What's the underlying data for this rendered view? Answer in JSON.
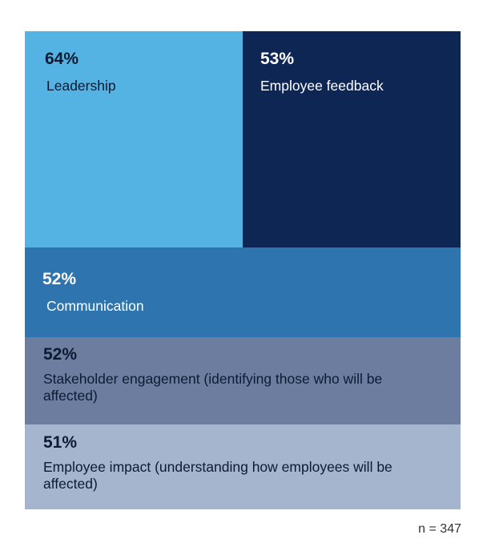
{
  "chart_data": {
    "type": "treemap",
    "categories": [
      "Leadership",
      "Employee feedback",
      "Communication",
      "Stakeholder engagement (identifying those who will be affected)",
      "Employee impact (understanding how employees will be affected)"
    ],
    "values": [
      64,
      53,
      52,
      52,
      51
    ],
    "value_labels": [
      "64%",
      "53%",
      "52%",
      "52%",
      "51%"
    ],
    "colors": [
      "#54b3e2",
      "#0d2654",
      "#2e75b0",
      "#6c7d9f",
      "#a5b5ce"
    ],
    "text_colors": [
      "#0d1a33",
      "#ffffff",
      "#ffffff",
      "#0d1a33",
      "#0d1a33"
    ],
    "footnote": "n = 347"
  }
}
